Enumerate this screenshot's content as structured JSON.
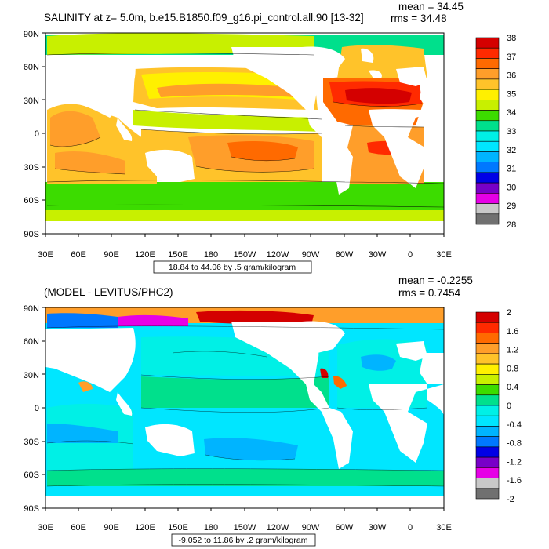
{
  "panels": [
    {
      "id": "top",
      "title": "SALINITY at z=   5.0m, b.e15.B1850.f09_g16.pi_control.all.90 [13-32]",
      "stats": {
        "mean": "mean = 34.45",
        "rms": "rms = 34.48"
      },
      "range_label": "18.84 to 44.06 by .5 gram/kilogram",
      "lat_labels": [
        "90N",
        "60N",
        "30N",
        "0",
        "30S",
        "60S",
        "90S"
      ],
      "lon_labels": [
        "30E",
        "60E",
        "90E",
        "120E",
        "150E",
        "180",
        "150W",
        "120W",
        "90W",
        "60W",
        "30W",
        "0",
        "30E"
      ],
      "colorbar": {
        "labels": [
          "38",
          "37",
          "36",
          "35",
          "34",
          "33",
          "32",
          "31",
          "30",
          "29",
          "28"
        ],
        "colors": [
          "#d40000",
          "#ff2a00",
          "#ff6a00",
          "#ff9e2a",
          "#ffc32a",
          "#fff000",
          "#c8f000",
          "#3cdc00",
          "#00e08c",
          "#00f0e6",
          "#00e6ff",
          "#00b4ff",
          "#0078ff",
          "#0000e6",
          "#7800c8",
          "#e600e6",
          "#c8c8c8",
          "#707070"
        ]
      }
    },
    {
      "id": "bottom",
      "title": "(MODEL - LEVITUS/PHC2)",
      "stats": {
        "mean": "mean = -0.2255",
        "rms": "rms = 0.7454"
      },
      "range_label": "-9.052 to 11.86 by .2 gram/kilogram",
      "lat_labels": [
        "90N",
        "60N",
        "30N",
        "0",
        "30S",
        "60S",
        "90S"
      ],
      "lon_labels": [
        "30E",
        "60E",
        "90E",
        "120E",
        "150E",
        "180",
        "150W",
        "120W",
        "90W",
        "60W",
        "30W",
        "0",
        "30E"
      ],
      "colorbar": {
        "labels": [
          "2",
          "1.6",
          "1.2",
          "0.8",
          "0.4",
          "0",
          "-0.4",
          "-0.8",
          "-1.2",
          "-1.6",
          "-2"
        ],
        "colors": [
          "#d40000",
          "#ff2a00",
          "#ff6a00",
          "#ff9e2a",
          "#ffc32a",
          "#fff000",
          "#c8f000",
          "#3cdc00",
          "#00e08c",
          "#00f0e6",
          "#00e6ff",
          "#00b4ff",
          "#0078ff",
          "#0000e6",
          "#7800c8",
          "#e600e6",
          "#c8c8c8",
          "#707070"
        ]
      }
    }
  ]
}
